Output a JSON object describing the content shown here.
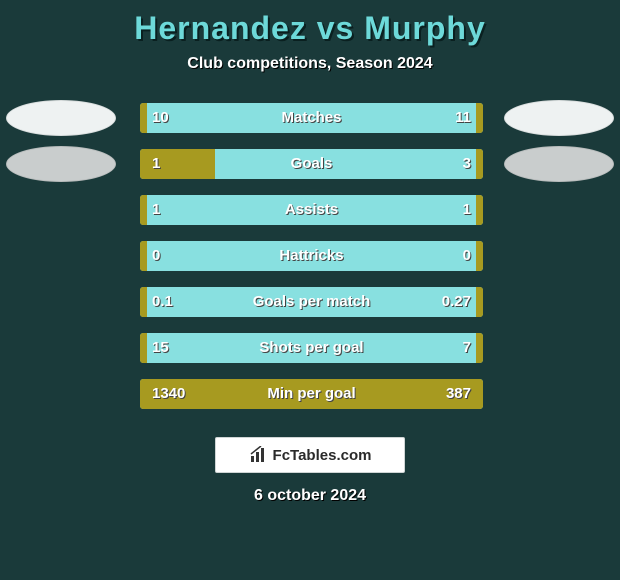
{
  "title": "Hernandez vs Murphy",
  "subtitle": "Club competitions, Season 2024",
  "colors": {
    "background": "#1a3a3a",
    "title": "#6dd9d9",
    "bar_track": "#88e0e0",
    "bar_fill": "#a79a20",
    "text": "#ffffff",
    "badge_bg": "#ffffff",
    "badge_text": "#2a2a2a"
  },
  "logos": {
    "left_row1": "light",
    "right_row1": "light",
    "left_row2": "gray",
    "right_row2": "gray"
  },
  "rows": [
    {
      "label": "Matches",
      "left_val": "10",
      "right_val": "11",
      "left_pct": 2,
      "right_pct": 2
    },
    {
      "label": "Goals",
      "left_val": "1",
      "right_val": "3",
      "left_pct": 22,
      "right_pct": 2
    },
    {
      "label": "Assists",
      "left_val": "1",
      "right_val": "1",
      "left_pct": 2,
      "right_pct": 2
    },
    {
      "label": "Hattricks",
      "left_val": "0",
      "right_val": "0",
      "left_pct": 2,
      "right_pct": 2
    },
    {
      "label": "Goals per match",
      "left_val": "0.1",
      "right_val": "0.27",
      "left_pct": 2,
      "right_pct": 2
    },
    {
      "label": "Shots per goal",
      "left_val": "15",
      "right_val": "7",
      "left_pct": 2,
      "right_pct": 2
    },
    {
      "label": "Min per goal",
      "left_val": "1340",
      "right_val": "387",
      "left_pct": 78,
      "right_pct": 22
    }
  ],
  "footer": {
    "brand": "FcTables.com",
    "date": "6 october 2024"
  }
}
